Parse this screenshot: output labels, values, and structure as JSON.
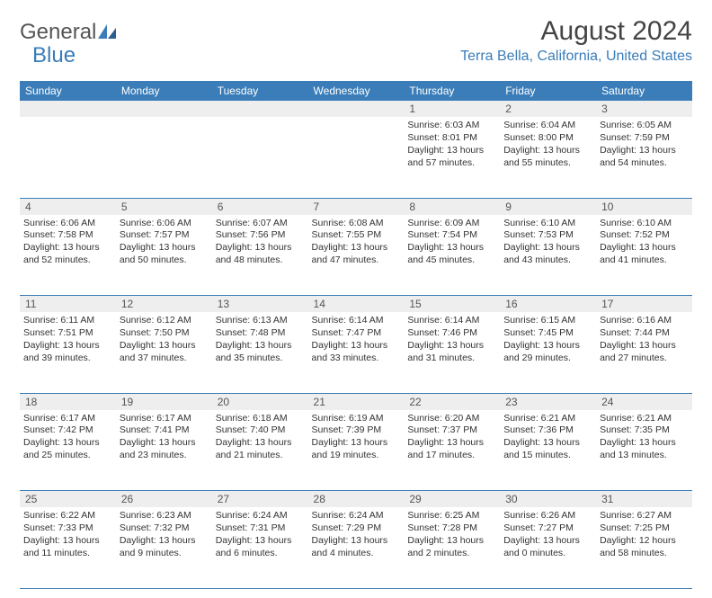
{
  "logo": {
    "text1": "General",
    "text2": "Blue"
  },
  "title": "August 2024",
  "location": "Terra Bella, California, United States",
  "colors": {
    "header_bg": "#3a7db8",
    "header_fg": "#ffffff",
    "daynum_bg": "#eeeeee",
    "rule": "#3a7db8",
    "accent": "#3a7db8"
  },
  "day_headers": [
    "Sunday",
    "Monday",
    "Tuesday",
    "Wednesday",
    "Thursday",
    "Friday",
    "Saturday"
  ],
  "weeks": [
    [
      {
        "n": "",
        "sunrise": "",
        "sunset": "",
        "daylight": ""
      },
      {
        "n": "",
        "sunrise": "",
        "sunset": "",
        "daylight": ""
      },
      {
        "n": "",
        "sunrise": "",
        "sunset": "",
        "daylight": ""
      },
      {
        "n": "",
        "sunrise": "",
        "sunset": "",
        "daylight": ""
      },
      {
        "n": "1",
        "sunrise": "Sunrise: 6:03 AM",
        "sunset": "Sunset: 8:01 PM",
        "daylight": "Daylight: 13 hours and 57 minutes."
      },
      {
        "n": "2",
        "sunrise": "Sunrise: 6:04 AM",
        "sunset": "Sunset: 8:00 PM",
        "daylight": "Daylight: 13 hours and 55 minutes."
      },
      {
        "n": "3",
        "sunrise": "Sunrise: 6:05 AM",
        "sunset": "Sunset: 7:59 PM",
        "daylight": "Daylight: 13 hours and 54 minutes."
      }
    ],
    [
      {
        "n": "4",
        "sunrise": "Sunrise: 6:06 AM",
        "sunset": "Sunset: 7:58 PM",
        "daylight": "Daylight: 13 hours and 52 minutes."
      },
      {
        "n": "5",
        "sunrise": "Sunrise: 6:06 AM",
        "sunset": "Sunset: 7:57 PM",
        "daylight": "Daylight: 13 hours and 50 minutes."
      },
      {
        "n": "6",
        "sunrise": "Sunrise: 6:07 AM",
        "sunset": "Sunset: 7:56 PM",
        "daylight": "Daylight: 13 hours and 48 minutes."
      },
      {
        "n": "7",
        "sunrise": "Sunrise: 6:08 AM",
        "sunset": "Sunset: 7:55 PM",
        "daylight": "Daylight: 13 hours and 47 minutes."
      },
      {
        "n": "8",
        "sunrise": "Sunrise: 6:09 AM",
        "sunset": "Sunset: 7:54 PM",
        "daylight": "Daylight: 13 hours and 45 minutes."
      },
      {
        "n": "9",
        "sunrise": "Sunrise: 6:10 AM",
        "sunset": "Sunset: 7:53 PM",
        "daylight": "Daylight: 13 hours and 43 minutes."
      },
      {
        "n": "10",
        "sunrise": "Sunrise: 6:10 AM",
        "sunset": "Sunset: 7:52 PM",
        "daylight": "Daylight: 13 hours and 41 minutes."
      }
    ],
    [
      {
        "n": "11",
        "sunrise": "Sunrise: 6:11 AM",
        "sunset": "Sunset: 7:51 PM",
        "daylight": "Daylight: 13 hours and 39 minutes."
      },
      {
        "n": "12",
        "sunrise": "Sunrise: 6:12 AM",
        "sunset": "Sunset: 7:50 PM",
        "daylight": "Daylight: 13 hours and 37 minutes."
      },
      {
        "n": "13",
        "sunrise": "Sunrise: 6:13 AM",
        "sunset": "Sunset: 7:48 PM",
        "daylight": "Daylight: 13 hours and 35 minutes."
      },
      {
        "n": "14",
        "sunrise": "Sunrise: 6:14 AM",
        "sunset": "Sunset: 7:47 PM",
        "daylight": "Daylight: 13 hours and 33 minutes."
      },
      {
        "n": "15",
        "sunrise": "Sunrise: 6:14 AM",
        "sunset": "Sunset: 7:46 PM",
        "daylight": "Daylight: 13 hours and 31 minutes."
      },
      {
        "n": "16",
        "sunrise": "Sunrise: 6:15 AM",
        "sunset": "Sunset: 7:45 PM",
        "daylight": "Daylight: 13 hours and 29 minutes."
      },
      {
        "n": "17",
        "sunrise": "Sunrise: 6:16 AM",
        "sunset": "Sunset: 7:44 PM",
        "daylight": "Daylight: 13 hours and 27 minutes."
      }
    ],
    [
      {
        "n": "18",
        "sunrise": "Sunrise: 6:17 AM",
        "sunset": "Sunset: 7:42 PM",
        "daylight": "Daylight: 13 hours and 25 minutes."
      },
      {
        "n": "19",
        "sunrise": "Sunrise: 6:17 AM",
        "sunset": "Sunset: 7:41 PM",
        "daylight": "Daylight: 13 hours and 23 minutes."
      },
      {
        "n": "20",
        "sunrise": "Sunrise: 6:18 AM",
        "sunset": "Sunset: 7:40 PM",
        "daylight": "Daylight: 13 hours and 21 minutes."
      },
      {
        "n": "21",
        "sunrise": "Sunrise: 6:19 AM",
        "sunset": "Sunset: 7:39 PM",
        "daylight": "Daylight: 13 hours and 19 minutes."
      },
      {
        "n": "22",
        "sunrise": "Sunrise: 6:20 AM",
        "sunset": "Sunset: 7:37 PM",
        "daylight": "Daylight: 13 hours and 17 minutes."
      },
      {
        "n": "23",
        "sunrise": "Sunrise: 6:21 AM",
        "sunset": "Sunset: 7:36 PM",
        "daylight": "Daylight: 13 hours and 15 minutes."
      },
      {
        "n": "24",
        "sunrise": "Sunrise: 6:21 AM",
        "sunset": "Sunset: 7:35 PM",
        "daylight": "Daylight: 13 hours and 13 minutes."
      }
    ],
    [
      {
        "n": "25",
        "sunrise": "Sunrise: 6:22 AM",
        "sunset": "Sunset: 7:33 PM",
        "daylight": "Daylight: 13 hours and 11 minutes."
      },
      {
        "n": "26",
        "sunrise": "Sunrise: 6:23 AM",
        "sunset": "Sunset: 7:32 PM",
        "daylight": "Daylight: 13 hours and 9 minutes."
      },
      {
        "n": "27",
        "sunrise": "Sunrise: 6:24 AM",
        "sunset": "Sunset: 7:31 PM",
        "daylight": "Daylight: 13 hours and 6 minutes."
      },
      {
        "n": "28",
        "sunrise": "Sunrise: 6:24 AM",
        "sunset": "Sunset: 7:29 PM",
        "daylight": "Daylight: 13 hours and 4 minutes."
      },
      {
        "n": "29",
        "sunrise": "Sunrise: 6:25 AM",
        "sunset": "Sunset: 7:28 PM",
        "daylight": "Daylight: 13 hours and 2 minutes."
      },
      {
        "n": "30",
        "sunrise": "Sunrise: 6:26 AM",
        "sunset": "Sunset: 7:27 PM",
        "daylight": "Daylight: 13 hours and 0 minutes."
      },
      {
        "n": "31",
        "sunrise": "Sunrise: 6:27 AM",
        "sunset": "Sunset: 7:25 PM",
        "daylight": "Daylight: 12 hours and 58 minutes."
      }
    ]
  ]
}
